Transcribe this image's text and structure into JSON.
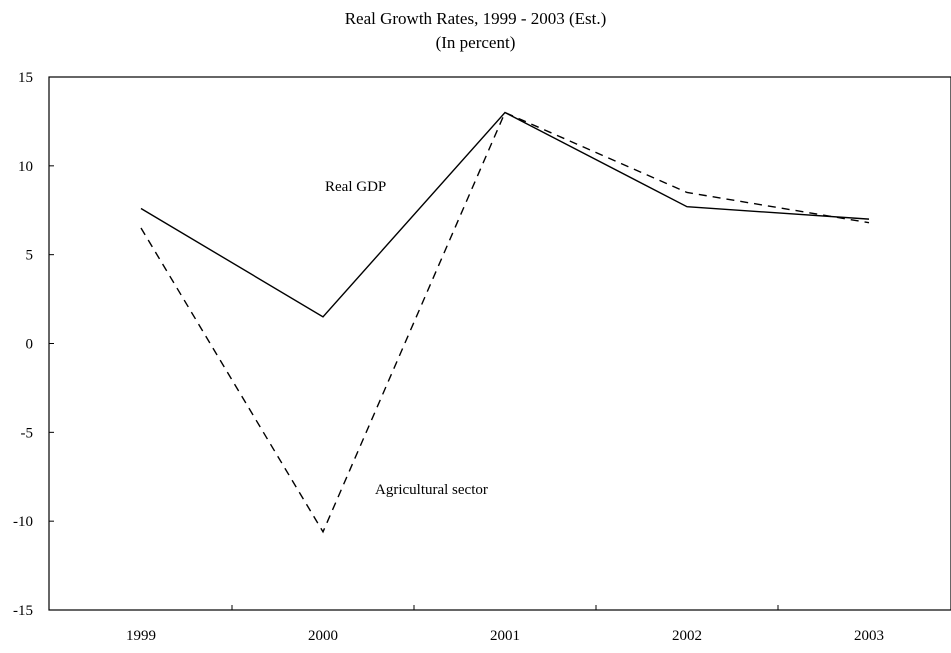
{
  "chart_data": {
    "type": "line",
    "title": "Real Growth Rates, 1999 - 2003 (Est.)",
    "subtitle": "(In percent)",
    "categories": [
      "1999",
      "2000",
      "2001",
      "2002",
      "2003"
    ],
    "ylim": [
      -15,
      15
    ],
    "yticks": [
      "15",
      "10",
      "5",
      "0",
      "-5",
      "-10",
      "-15"
    ],
    "series": [
      {
        "name": "Real GDP",
        "values": [
          7.6,
          1.5,
          13.0,
          7.7,
          7.0
        ],
        "style": "solid",
        "color": "#000000"
      },
      {
        "name": "Agricultural sector",
        "values": [
          6.5,
          -10.6,
          13.0,
          8.5,
          6.8
        ],
        "style": "dashed",
        "color": "#000000"
      }
    ],
    "grid": false,
    "legend": "inline labels near lines"
  }
}
